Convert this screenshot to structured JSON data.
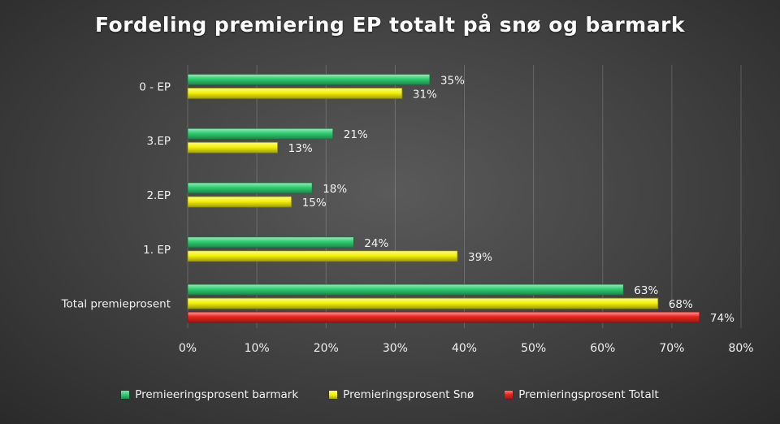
{
  "chart_data": {
    "type": "bar",
    "orientation": "horizontal",
    "title": "Fordeling premiering EP totalt på snø og barmark",
    "categories": [
      "0 - EP",
      "3.EP",
      "2.EP",
      "1. EP",
      "Total premieprosent"
    ],
    "series": [
      {
        "name": "Premieeringsprosent barmark",
        "color": "#2ecc71",
        "values": [
          35,
          21,
          18,
          24,
          63
        ],
        "labels": [
          "35%",
          "21%",
          "18%",
          "24%",
          "63%"
        ]
      },
      {
        "name": "Premieringsprosent Snø",
        "color": "#f5f20a",
        "values": [
          31,
          13,
          15,
          39,
          68
        ],
        "labels": [
          "31%",
          "13%",
          "15%",
          "39%",
          "68%"
        ]
      },
      {
        "name": "Premieringsprosent Totalt",
        "color": "#e8241c",
        "values": [
          null,
          null,
          null,
          null,
          74
        ],
        "labels": [
          null,
          null,
          null,
          null,
          "74%"
        ]
      }
    ],
    "xticks": [
      "0%",
      "10%",
      "20%",
      "30%",
      "40%",
      "50%",
      "60%",
      "70%",
      "80%"
    ],
    "xlim": [
      0,
      80
    ],
    "grid": true,
    "legend_position": "bottom"
  }
}
